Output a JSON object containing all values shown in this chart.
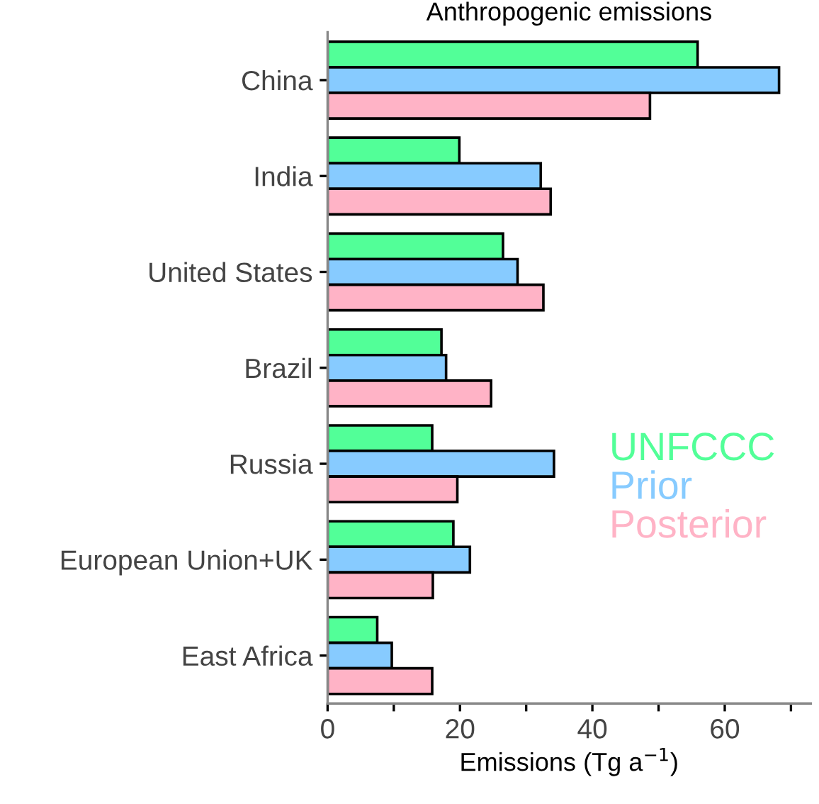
{
  "chart_data": {
    "type": "bar",
    "orientation": "horizontal",
    "title": "Anthropogenic emissions",
    "xlabel": "Emissions (Tg a$^{−1}$)",
    "categories": [
      "China",
      "India",
      "United States",
      "Brazil",
      "Russia",
      "European Union+UK",
      "East Africa"
    ],
    "series": [
      {
        "name": "UNFCCC",
        "color": "#52ff98",
        "values": [
          55.9,
          19.9,
          26.5,
          17.2,
          15.8,
          19.0,
          7.5
        ]
      },
      {
        "name": "Prior",
        "color": "#87cbff",
        "values": [
          68.2,
          32.2,
          28.7,
          17.9,
          34.2,
          21.5,
          9.7
        ]
      },
      {
        "name": "Posterior",
        "color": "#ffb3c6",
        "values": [
          48.7,
          33.7,
          32.6,
          24.7,
          19.6,
          15.9,
          15.8
        ]
      }
    ],
    "xlim": [
      0,
      73
    ],
    "xticks": [
      0,
      {
        "value": 10,
        "label": null
      },
      20,
      {
        "value": 30,
        "label": null
      },
      40,
      {
        "value": 50,
        "label": null
      },
      60,
      {
        "value": 70,
        "label": null
      }
    ],
    "grid": false,
    "legend": "right"
  }
}
